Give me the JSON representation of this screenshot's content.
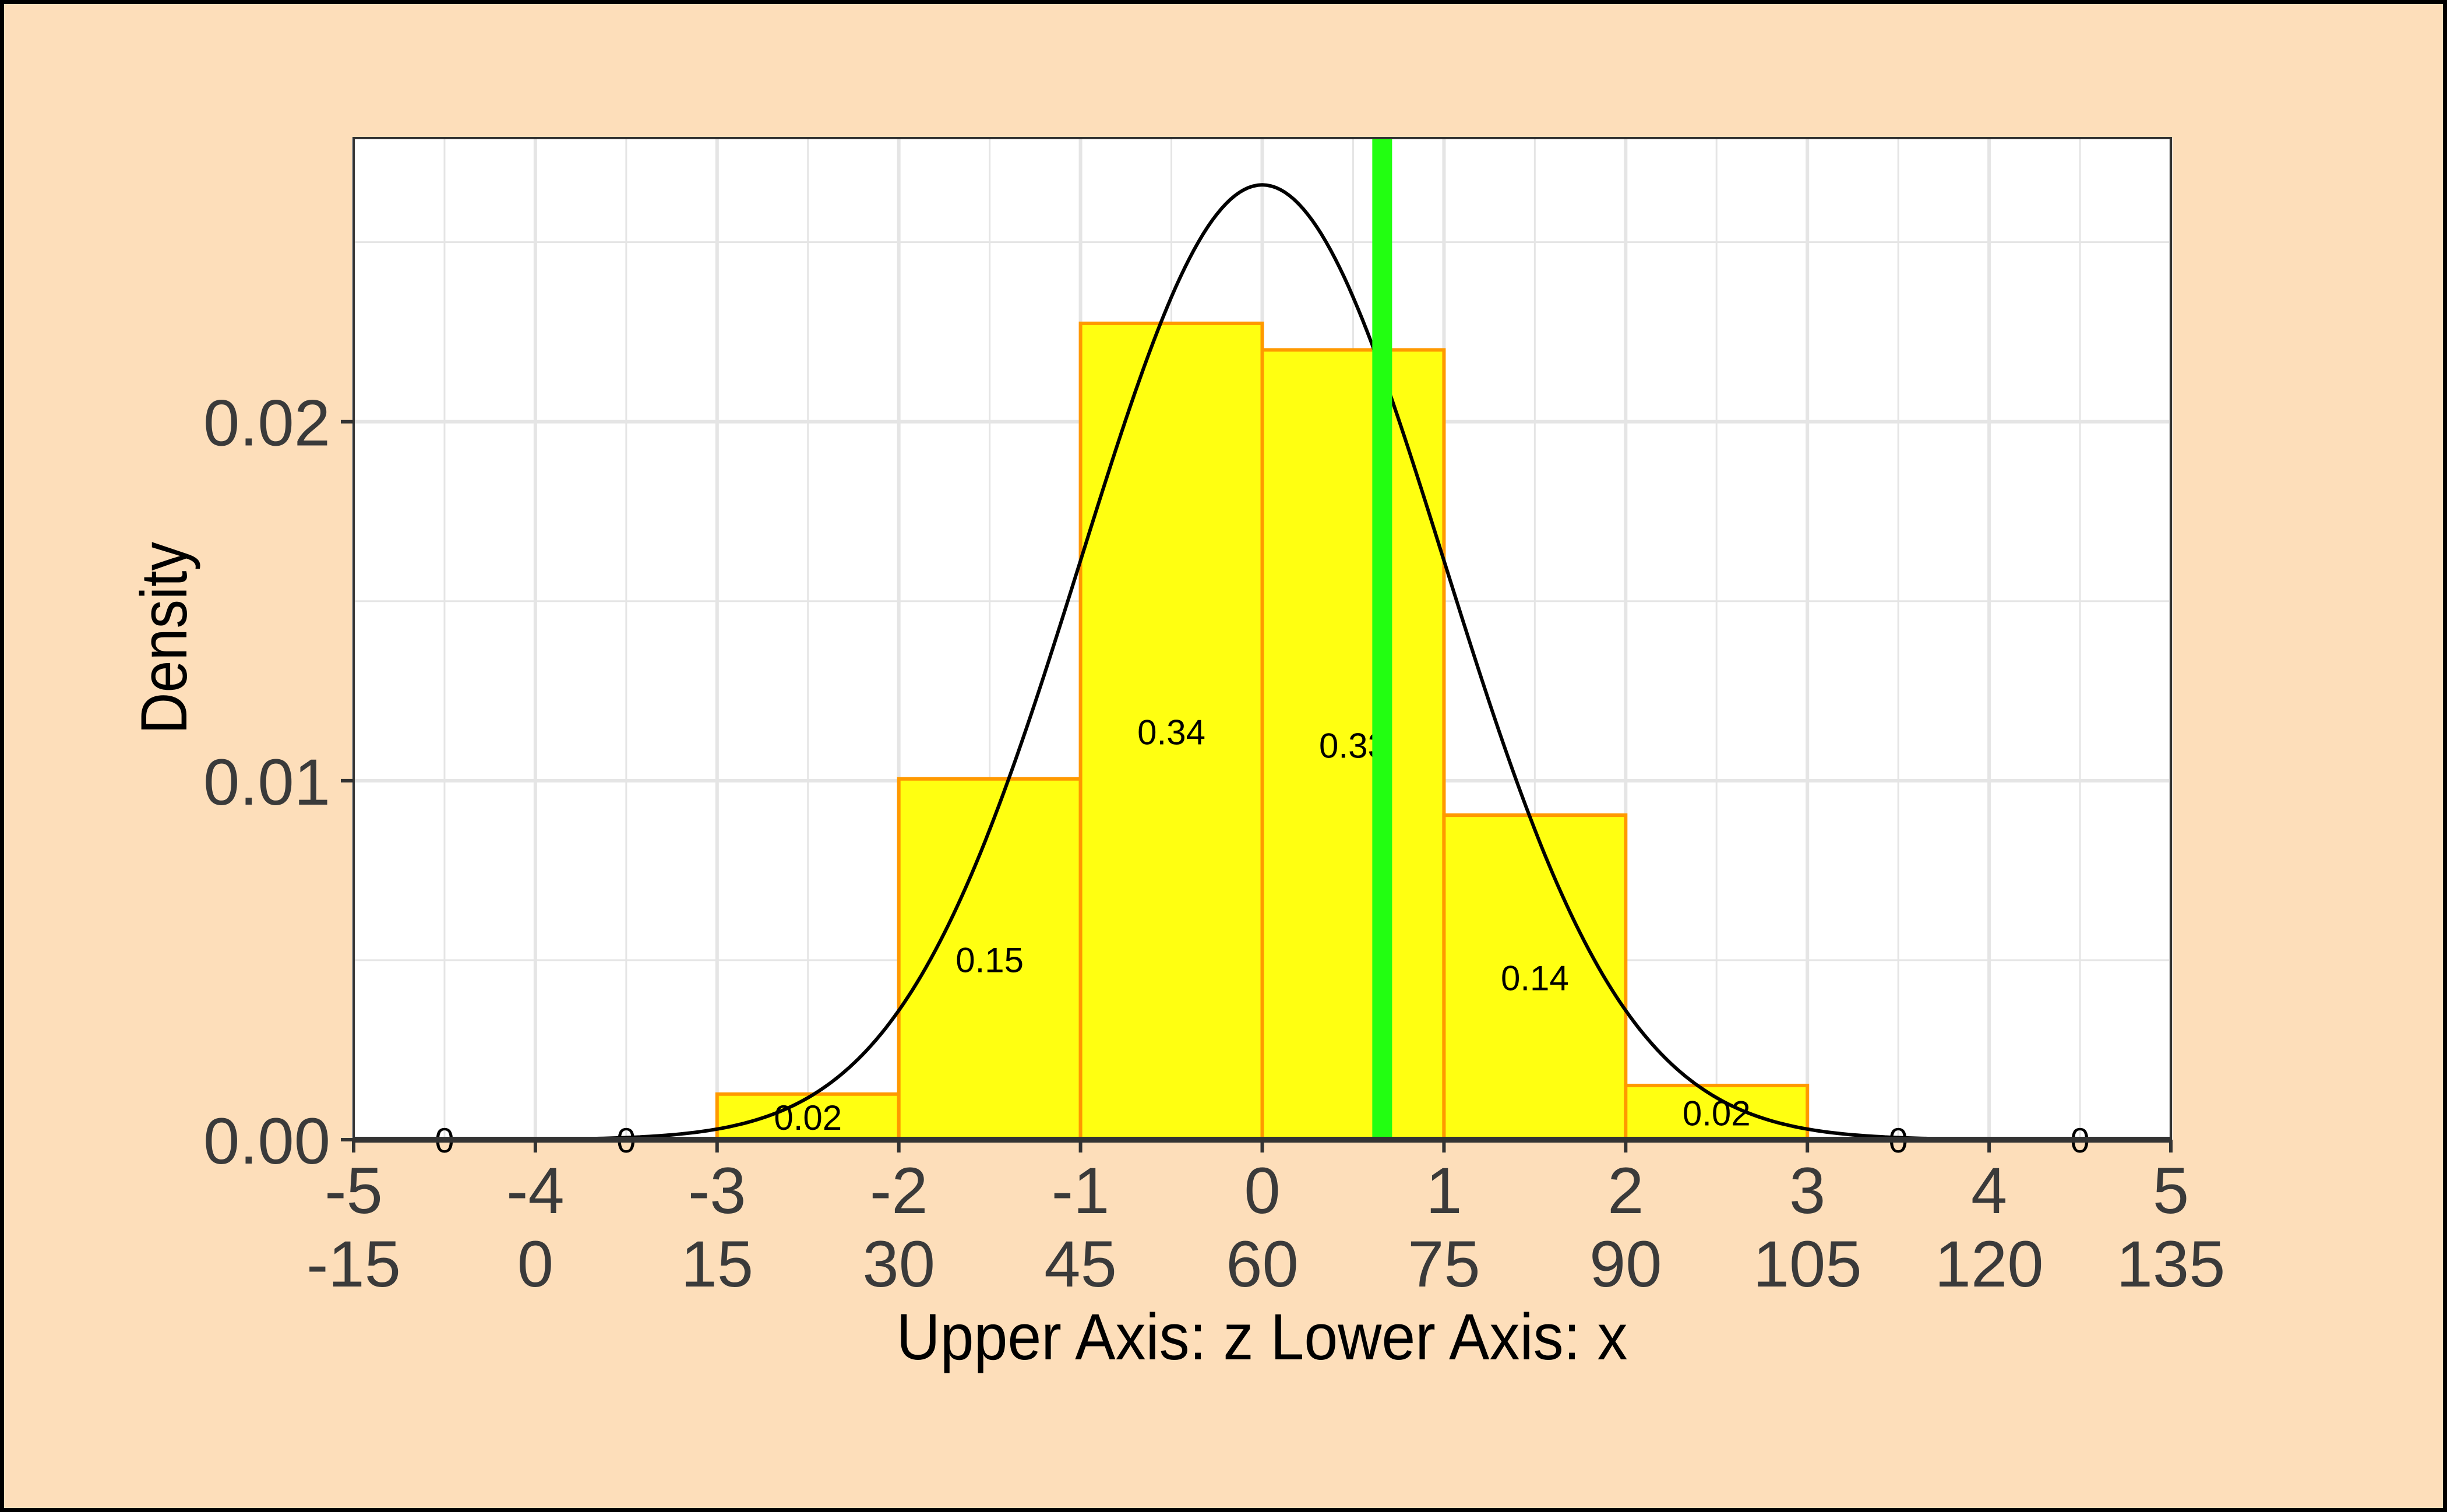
{
  "chart_data": {
    "type": "bar",
    "subtype": "histogram with normal density curve",
    "xlabel": "Upper Axis: z Lower Axis:  x",
    "ylabel": "Density",
    "upper_axis_ticks": [
      "-5",
      "-4",
      "-3",
      "-2",
      "-1",
      "0",
      "1",
      "2",
      "3",
      "4",
      "5"
    ],
    "lower_axis_ticks": [
      "-15",
      "0",
      "15",
      "30",
      "45",
      "60",
      "75",
      "90",
      "105",
      "120",
      "135"
    ],
    "y_ticks": [
      "0.00",
      "0.01",
      "0.02"
    ],
    "xlim_z": [
      -5,
      5
    ],
    "ylim": [
      0,
      0.0279
    ],
    "grid": true,
    "bins_z": [
      [
        -5,
        -4
      ],
      [
        -4,
        -3
      ],
      [
        -3,
        -2
      ],
      [
        -2,
        -1
      ],
      [
        -1,
        0
      ],
      [
        0,
        1
      ],
      [
        1,
        2
      ],
      [
        2,
        3
      ],
      [
        3,
        4
      ],
      [
        4,
        5
      ]
    ],
    "densities": [
      0,
      0,
      0.00127,
      0.01005,
      0.02274,
      0.022,
      0.00904,
      0.00151,
      0,
      0
    ],
    "bar_labels": [
      "0",
      "0",
      "0.02",
      "0.15",
      "0.34",
      "0.33",
      "0.14",
      "0.02",
      "0",
      "0"
    ],
    "normal_curve": {
      "mean": 60,
      "sd": 15
    },
    "vertical_line_z": 0.66,
    "colors": {
      "background": "#FDDEBA",
      "panel": "#FFFFFF",
      "grid": "#E5E5E5",
      "bar_fill": "#FFFF11",
      "bar_outline": "#FF9900",
      "curve": "#000000",
      "vline": "#22FF11"
    }
  }
}
